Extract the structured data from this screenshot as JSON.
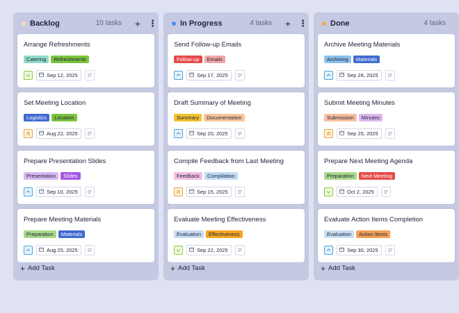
{
  "colors": {
    "background": "#dfe2f2",
    "column": "#c5cae2",
    "card": "#ffffff"
  },
  "add_task_label": "Add Task",
  "columns": [
    {
      "title": "Backlog",
      "count": "10 tasks",
      "dot_color": "#f6ddb0",
      "cards": [
        {
          "title": "Arrange Refreshments",
          "tags": [
            {
              "label": "Catering",
              "bg": "#8fdcc8",
              "fg": "#1c2336"
            },
            {
              "label": "Refreshments",
              "bg": "#7cc43f",
              "fg": "#1c2336"
            }
          ],
          "priority": "low",
          "priority_icon": "chevron-down-icon",
          "priority_color": "#8ccc3f",
          "priority_bg": "#eef9df",
          "date": "Sep 12, 2025"
        },
        {
          "title": "Set Meeting Location",
          "tags": [
            {
              "label": "Logistics",
              "bg": "#3f6ad0",
              "fg": "#ffffff"
            },
            {
              "label": "Location",
              "bg": "#7cc43f",
              "fg": "#1c2336"
            }
          ],
          "priority": "high",
          "priority_icon": "double-chevron-up-icon",
          "priority_color": "#e8a63c",
          "priority_bg": "#fdf2df",
          "date": "Aug 22, 2025"
        },
        {
          "title": "Prepare Presentation Slides",
          "tags": [
            {
              "label": "Presentation",
              "bg": "#d7b8f0",
              "fg": "#1c2336"
            },
            {
              "label": "Slides",
              "bg": "#a656e2",
              "fg": "#ffffff"
            }
          ],
          "priority": "medium",
          "priority_icon": "chevron-up-icon",
          "priority_color": "#4aa3d8",
          "priority_bg": "#e6f3fb",
          "date": "Sep 10, 2025"
        },
        {
          "title": "Prepare Meeting Materials",
          "tags": [
            {
              "label": "Preparation",
              "bg": "#a9d88a",
              "fg": "#1c2336"
            },
            {
              "label": "Materials",
              "bg": "#3f6ad0",
              "fg": "#ffffff"
            }
          ],
          "priority": "medium",
          "priority_icon": "chevron-up-icon",
          "priority_color": "#4aa3d8",
          "priority_bg": "#e6f3fb",
          "date": "Aug 25, 2025"
        }
      ]
    },
    {
      "title": "In Progress",
      "count": "4 tasks",
      "dot_color": "#4a8ce8",
      "cards": [
        {
          "title": "Send Follow-up Emails",
          "tags": [
            {
              "label": "Follow-up",
              "bg": "#e64a4a",
              "fg": "#ffffff"
            },
            {
              "label": "Emails",
              "bg": "#f2a7a7",
              "fg": "#1c2336"
            }
          ],
          "priority": "medium",
          "priority_icon": "chevron-up-icon",
          "priority_color": "#4aa3d8",
          "priority_bg": "#e6f3fb",
          "date": "Sep 17, 2025"
        },
        {
          "title": "Draft Summary of Meeting",
          "tags": [
            {
              "label": "Summary",
              "bg": "#f2c12e",
              "fg": "#1c2336"
            },
            {
              "label": "Documentation",
              "bg": "#f7c69a",
              "fg": "#1c2336"
            }
          ],
          "priority": "medium",
          "priority_icon": "chevron-up-icon",
          "priority_color": "#4aa3d8",
          "priority_bg": "#e6f3fb",
          "date": "Sep 20, 2025"
        },
        {
          "title": "Compile Feedback from Last Meeting",
          "tags": [
            {
              "label": "Feedback",
              "bg": "#f3bde0",
              "fg": "#1c2336"
            },
            {
              "label": "Compilation",
              "bg": "#bfdcf6",
              "fg": "#1c2336"
            }
          ],
          "priority": "high",
          "priority_icon": "double-chevron-up-icon",
          "priority_color": "#e8a63c",
          "priority_bg": "#fdf2df",
          "date": "Sep 15, 2025"
        },
        {
          "title": "Evaluate Meeting Effectiveness",
          "tags": [
            {
              "label": "Evaluation",
              "bg": "#c8dcf2",
              "fg": "#1c2336"
            },
            {
              "label": "Effectiveness",
              "bg": "#f5a623",
              "fg": "#1c2336"
            }
          ],
          "priority": "low",
          "priority_icon": "chevron-down-icon",
          "priority_color": "#8ccc3f",
          "priority_bg": "#eef9df",
          "date": "Sep 22, 2025"
        }
      ]
    },
    {
      "title": "Done",
      "count": "4 tasks",
      "dot_color": "#f5a742",
      "cards": [
        {
          "title": "Archive Meeting Materials",
          "tags": [
            {
              "label": "Archiving",
              "bg": "#8cc0ec",
              "fg": "#1c2336"
            },
            {
              "label": "Materials",
              "bg": "#3f6ad0",
              "fg": "#ffffff"
            }
          ],
          "priority": "medium",
          "priority_icon": "chevron-up-icon",
          "priority_color": "#4aa3d8",
          "priority_bg": "#e6f3fb",
          "date": "Sep 28, 2025"
        },
        {
          "title": "Submit Meeting Minutes",
          "tags": [
            {
              "label": "Submission",
              "bg": "#f7bfa0",
              "fg": "#1c2336"
            },
            {
              "label": "Minutes",
              "bg": "#ddb8f0",
              "fg": "#1c2336"
            }
          ],
          "priority": "high",
          "priority_icon": "double-chevron-up-icon",
          "priority_color": "#e8a63c",
          "priority_bg": "#fdf2df",
          "date": "Sep 25, 2025"
        },
        {
          "title": "Prepare Next Meeting Agenda",
          "tags": [
            {
              "label": "Preparation",
              "bg": "#a9d88a",
              "fg": "#1c2336"
            },
            {
              "label": "Next Meeting",
              "bg": "#e64a4a",
              "fg": "#ffffff"
            }
          ],
          "priority": "low",
          "priority_icon": "chevron-down-icon",
          "priority_color": "#8ccc3f",
          "priority_bg": "#eef9df",
          "date": "Oct 2, 2025"
        },
        {
          "title": "Evaluate Action Items Completion",
          "tags": [
            {
              "label": "Evaluation",
              "bg": "#c8dcf2",
              "fg": "#1c2336"
            },
            {
              "label": "Action Items",
              "bg": "#f5a05a",
              "fg": "#1c2336"
            }
          ],
          "priority": "medium",
          "priority_icon": "chevron-up-icon",
          "priority_color": "#4aa3d8",
          "priority_bg": "#e6f3fb",
          "date": "Sep 30, 2025"
        }
      ]
    }
  ]
}
